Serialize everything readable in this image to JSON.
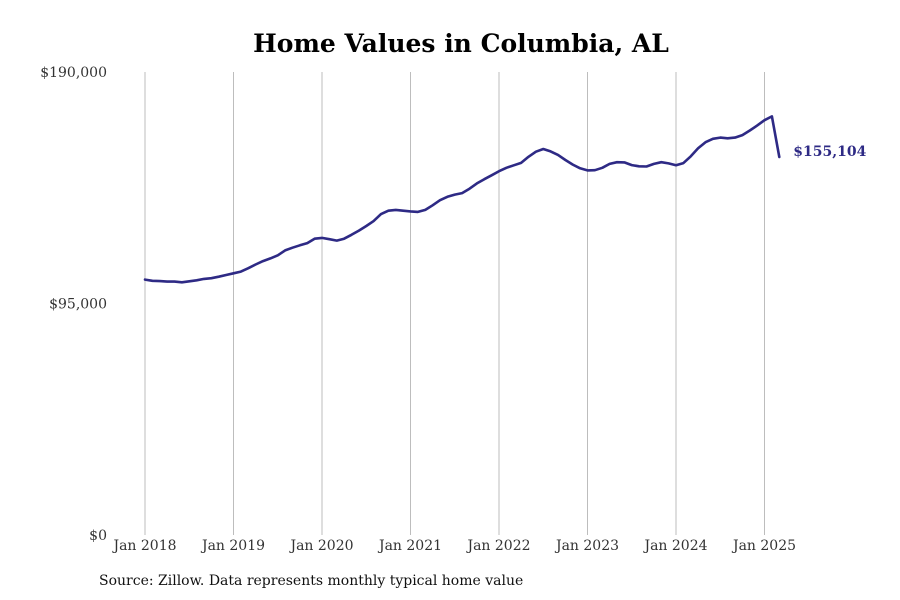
{
  "chart_data": {
    "type": "line",
    "title": "Home Values in Columbia, AL",
    "xlabel": "",
    "ylabel": "",
    "ylim": [
      0,
      190000
    ],
    "yticks": [
      {
        "value": 0,
        "label": "$0"
      },
      {
        "value": 95000,
        "label": "$95,000"
      },
      {
        "value": 190000,
        "label": "$190,000"
      }
    ],
    "xticks": [
      "Jan 2018",
      "Jan 2019",
      "Jan 2020",
      "Jan 2021",
      "Jan 2022",
      "Jan 2023",
      "Jan 2024",
      "Jan 2025"
    ],
    "grid": "vertical",
    "series_color": "#2e2a85",
    "end_label": "$155,104",
    "series": [
      {
        "x": [
          "2018-01",
          "2018-02",
          "2018-03",
          "2018-04",
          "2018-05",
          "2018-06",
          "2018-07",
          "2018-08",
          "2018-09",
          "2018-10",
          "2018-11",
          "2018-12",
          "2019-01",
          "2019-02",
          "2019-03",
          "2019-04",
          "2019-05",
          "2019-06",
          "2019-07",
          "2019-08",
          "2019-09",
          "2019-10",
          "2019-11",
          "2019-12",
          "2020-01",
          "2020-02",
          "2020-03",
          "2020-04",
          "2020-05",
          "2020-06",
          "2020-07",
          "2020-08",
          "2020-09",
          "2020-10",
          "2020-11",
          "2020-12",
          "2021-01",
          "2021-02",
          "2021-03",
          "2021-04",
          "2021-05",
          "2021-06",
          "2021-07",
          "2021-08",
          "2021-09",
          "2021-10",
          "2021-11",
          "2021-12",
          "2022-01",
          "2022-02",
          "2022-03",
          "2022-04",
          "2022-05",
          "2022-06",
          "2022-07",
          "2022-08",
          "2022-09",
          "2022-10",
          "2022-11",
          "2022-12",
          "2023-01",
          "2023-02",
          "2023-03",
          "2023-04",
          "2023-05",
          "2023-06",
          "2023-07",
          "2023-08",
          "2023-09",
          "2023-10",
          "2023-11",
          "2023-12",
          "2024-01",
          "2024-02",
          "2024-03",
          "2024-04",
          "2024-05",
          "2024-06",
          "2024-07",
          "2024-08",
          "2024-09",
          "2024-10",
          "2024-11",
          "2024-12",
          "2025-01",
          "2025-02",
          "2025-03"
        ],
        "values": [
          104800,
          104300,
          104200,
          104000,
          104000,
          103700,
          104100,
          104500,
          105100,
          105400,
          106000,
          106700,
          107400,
          108100,
          109500,
          111000,
          112400,
          113500,
          114800,
          116800,
          117900,
          118900,
          119800,
          121600,
          121900,
          121400,
          120800,
          121600,
          123200,
          124900,
          126800,
          128800,
          131700,
          133100,
          133400,
          133100,
          132800,
          132600,
          133400,
          135300,
          137400,
          138800,
          139700,
          140300,
          142100,
          144300,
          146000,
          147600,
          149300,
          150700,
          151700,
          152700,
          155200,
          157300,
          158400,
          157400,
          156000,
          153900,
          152000,
          150500,
          149600,
          149700,
          150700,
          152300,
          153000,
          152900,
          151800,
          151300,
          151200,
          152300,
          153000,
          152500,
          151700,
          152600,
          155400,
          158700,
          161200,
          162600,
          163100,
          162800,
          163100,
          164100,
          166000,
          168000,
          170200,
          171800,
          155104
        ]
      }
    ]
  },
  "footer": {
    "source_text": "Source: Zillow. Data represents monthly typical home value"
  }
}
